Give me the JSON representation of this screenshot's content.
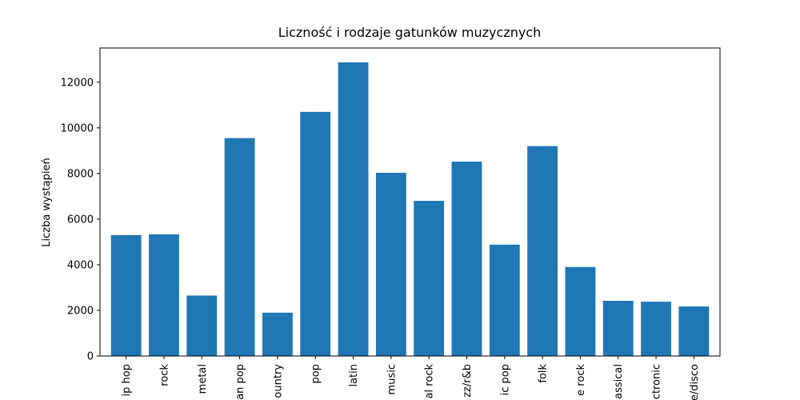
{
  "chart_data": {
    "type": "bar",
    "title": "Liczność i rodzaje gatunków muzycznych",
    "y_label": "Liczba wystąpień",
    "categories": [
      "ip hop",
      "rock",
      "metal",
      "an pop",
      "ountry",
      "pop",
      "latin",
      "music",
      "al rock",
      "zz/r&b",
      "ic pop",
      "folk",
      "e rock",
      "assical",
      "ctronic",
      "e/disco"
    ],
    "values": [
      5300,
      5330,
      2650,
      9550,
      1900,
      10700,
      12870,
      8030,
      6800,
      8520,
      4880,
      9200,
      3900,
      2420,
      2380,
      2170
    ],
    "color": "#1f77b4",
    "ylim": [
      0,
      13500
    ],
    "yticks": [
      0,
      2000,
      4000,
      6000,
      8000,
      10000,
      12000
    ],
    "grid": false
  }
}
